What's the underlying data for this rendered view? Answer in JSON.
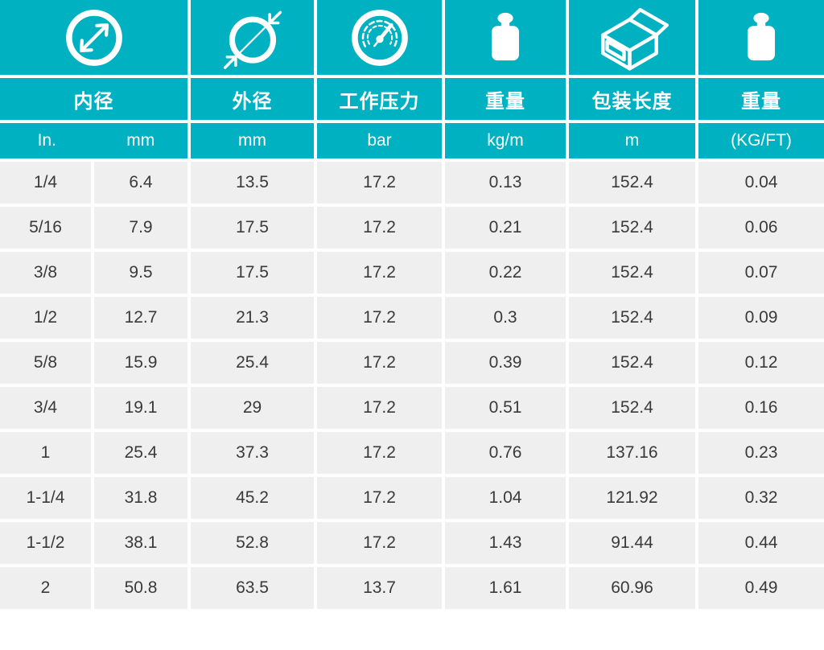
{
  "colors": {
    "accent": "#00b1c2",
    "row_bg": "#efefef",
    "text": "#3a3a3a"
  },
  "table": {
    "columns": [
      {
        "label": "内径",
        "icon": "inner-diameter-icon",
        "units": [
          "In.",
          "mm"
        ]
      },
      {
        "label": "外径",
        "icon": "outer-diameter-icon",
        "unit": "mm"
      },
      {
        "label": "工作压力",
        "icon": "pressure-gauge-icon",
        "unit": "bar"
      },
      {
        "label": "重量",
        "icon": "weight-icon",
        "unit": "kg/m"
      },
      {
        "label": "包装长度",
        "icon": "package-box-icon",
        "unit": "m"
      },
      {
        "label": "重量",
        "icon": "weight-icon",
        "unit": "(KG/FT)"
      }
    ],
    "rows": [
      [
        "1/4",
        "6.4",
        "13.5",
        "17.2",
        "0.13",
        "152.4",
        "0.04"
      ],
      [
        "5/16",
        "7.9",
        "17.5",
        "17.2",
        "0.21",
        "152.4",
        "0.06"
      ],
      [
        "3/8",
        "9.5",
        "17.5",
        "17.2",
        "0.22",
        "152.4",
        "0.07"
      ],
      [
        "1/2",
        "12.7",
        "21.3",
        "17.2",
        "0.3",
        "152.4",
        "0.09"
      ],
      [
        "5/8",
        "15.9",
        "25.4",
        "17.2",
        "0.39",
        "152.4",
        "0.12"
      ],
      [
        "3/4",
        "19.1",
        "29",
        "17.2",
        "0.51",
        "152.4",
        "0.16"
      ],
      [
        "1",
        "25.4",
        "37.3",
        "17.2",
        "0.76",
        "137.16",
        "0.23"
      ],
      [
        "1-1/4",
        "31.8",
        "45.2",
        "17.2",
        "1.04",
        "121.92",
        "0.32"
      ],
      [
        "1-1/2",
        "38.1",
        "52.8",
        "17.2",
        "1.43",
        "91.44",
        "0.44"
      ],
      [
        "2",
        "50.8",
        "63.5",
        "13.7",
        "1.61",
        "60.96",
        "0.49"
      ]
    ]
  }
}
